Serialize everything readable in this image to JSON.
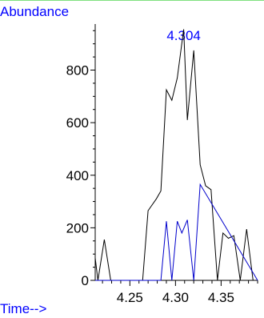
{
  "colors": {
    "series_black": "#000000",
    "series_blue": "#0000cc",
    "label_blue": "#0000ff",
    "top_border": "#7fe07f"
  },
  "chart_data": {
    "type": "line",
    "title": "",
    "ylabel": "Abundance",
    "xlabel": "Time-->",
    "peak_label": "4.304",
    "xlim": [
      4.212,
      4.39
    ],
    "ylim": [
      0,
      1000
    ],
    "x_ticks": [
      4.25,
      4.3,
      4.35
    ],
    "x_tick_labels": [
      "4.25",
      "4.30",
      "4.35"
    ],
    "y_ticks": [
      0,
      200,
      400,
      600,
      800
    ],
    "y_tick_labels": [
      "0",
      "200",
      "400",
      "600",
      "800"
    ],
    "grid": false,
    "series": [
      {
        "color": "#000000",
        "x": [
          4.212,
          4.215,
          4.222,
          4.229,
          4.236,
          4.243,
          4.25,
          4.257,
          4.264,
          4.27,
          4.279,
          4.284,
          4.29,
          4.296,
          4.302,
          4.309,
          4.313,
          4.32,
          4.327,
          4.333,
          4.339,
          4.346,
          4.352,
          4.358,
          4.364,
          4.371,
          4.378,
          4.385,
          4.39
        ],
        "values": [
          85,
          0,
          155,
          0,
          0,
          0,
          0,
          0,
          0,
          265,
          310,
          340,
          725,
          685,
          770,
          955,
          610,
          875,
          440,
          360,
          345,
          0,
          180,
          160,
          170,
          0,
          195,
          0,
          0
        ]
      },
      {
        "color": "#0000cc",
        "x": [
          4.212,
          4.284,
          4.29,
          4.296,
          4.302,
          4.307,
          4.313,
          4.32,
          4.327,
          4.39
        ],
        "values": [
          0,
          0,
          225,
          0,
          225,
          180,
          230,
          0,
          365,
          0
        ]
      }
    ]
  }
}
